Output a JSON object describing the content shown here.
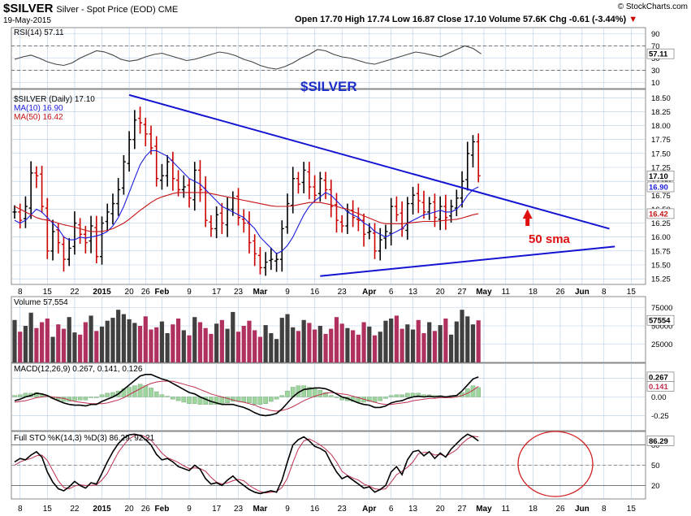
{
  "header": {
    "symbol": "$SILVER",
    "description": "Silver - Spot Price (EOD) CME",
    "date": "19-May-2015",
    "ohlc_line": "Open 17.70  High 17.74  Low 16.87  Close 17.10  Volume 57.6K  Chg -0.61 (-3.44%)",
    "change_marker": "▼",
    "watermark": "© StockCharts.com"
  },
  "chart_data": [
    {
      "type": "line",
      "panel": "rsi",
      "label": "RSI(14) 57.11",
      "yticks": [
        "90",
        "70",
        "50",
        "30",
        "10"
      ],
      "ylim": [
        0,
        100
      ],
      "last_label": "57.11",
      "values": [
        48,
        52,
        55,
        50,
        44,
        40,
        38,
        42,
        50,
        56,
        62,
        60,
        55,
        48,
        45,
        47,
        52,
        56,
        58,
        54,
        50,
        46,
        48,
        52,
        56,
        60,
        58,
        54,
        48,
        44,
        38,
        34,
        32,
        36,
        42,
        50,
        56,
        64,
        62,
        56,
        52,
        50,
        46,
        42,
        40,
        44,
        48,
        52,
        56,
        60,
        58,
        55,
        52,
        58,
        64,
        70,
        66,
        57
      ]
    },
    {
      "type": "ohlc",
      "panel": "price",
      "title": "$SILVER",
      "legend": [
        "$SILVER (Daily) 17.10",
        "MA(10) 16.90",
        "MA(50) 16.42"
      ],
      "yticks": [
        "18.50",
        "18.25",
        "18.00",
        "17.75",
        "17.50",
        "17.25",
        "17.00",
        "16.75",
        "16.50",
        "16.25",
        "16.00",
        "15.75",
        "15.50",
        "15.25"
      ],
      "ylim": [
        15.15,
        18.65
      ],
      "last_price": "17.10",
      "ma10_label": "16.90",
      "ma50_label": "16.42",
      "annotation": "50 sma",
      "closes": [
        16.45,
        16.3,
        16.55,
        17.15,
        17.1,
        16.55,
        15.75,
        16.1,
        15.9,
        15.6,
        15.8,
        16.25,
        16.05,
        15.9,
        16.2,
        15.65,
        16.25,
        16.45,
        16.6,
        16.85,
        17.35,
        17.75,
        18.1,
        18.05,
        17.85,
        17.6,
        17.05,
        17.1,
        17.35,
        17.05,
        16.85,
        16.9,
        16.7,
        17.2,
        16.85,
        16.3,
        16.15,
        16.4,
        16.25,
        16.5,
        16.7,
        16.35,
        16.25,
        15.9,
        15.7,
        15.45,
        15.55,
        15.6,
        15.6,
        16.15,
        16.6,
        17.05,
        16.95,
        17.2,
        16.9,
        16.75,
        17.05,
        16.85,
        16.55,
        16.3,
        16.2,
        16.45,
        16.35,
        16.3,
        16.05,
        16.1,
        15.75,
        15.95,
        16.1,
        16.55,
        16.4,
        16.15,
        16.6,
        16.75,
        16.65,
        16.45,
        16.6,
        16.35,
        16.55,
        16.35,
        16.55,
        16.7,
        17.0,
        17.5,
        17.71,
        17.1
      ],
      "ma10": [
        16.3,
        16.25,
        16.3,
        16.4,
        16.5,
        16.45,
        16.35,
        16.25,
        16.15,
        16.0,
        15.95,
        15.95,
        16.0,
        15.98,
        16.0,
        16.02,
        16.05,
        16.1,
        16.2,
        16.35,
        16.55,
        16.8,
        17.05,
        17.3,
        17.45,
        17.55,
        17.55,
        17.5,
        17.45,
        17.35,
        17.25,
        17.15,
        17.05,
        17.0,
        16.95,
        16.85,
        16.75,
        16.65,
        16.55,
        16.5,
        16.45,
        16.4,
        16.35,
        16.25,
        16.15,
        16.0,
        15.9,
        15.8,
        15.7,
        15.75,
        15.85,
        16.0,
        16.2,
        16.4,
        16.55,
        16.65,
        16.72,
        16.8,
        16.75,
        16.65,
        16.55,
        16.45,
        16.4,
        16.35,
        16.25,
        16.2,
        16.1,
        16.05,
        16.0,
        16.05,
        16.1,
        16.15,
        16.25,
        16.3,
        16.35,
        16.4,
        16.42,
        16.45,
        16.48,
        16.45,
        16.45,
        16.5,
        16.6,
        16.75,
        16.85,
        16.9
      ],
      "ma50": [
        16.55,
        16.5,
        16.45,
        16.4,
        16.35,
        16.32,
        16.3,
        16.28,
        16.25,
        16.22,
        16.2,
        16.18,
        16.15,
        16.12,
        16.1,
        16.1,
        16.1,
        16.12,
        16.15,
        16.2,
        16.25,
        16.32,
        16.4,
        16.48,
        16.55,
        16.62,
        16.68,
        16.72,
        16.75,
        16.78,
        16.8,
        16.8,
        16.8,
        16.8,
        16.8,
        16.8,
        16.78,
        16.76,
        16.74,
        16.72,
        16.7,
        16.68,
        16.66,
        16.64,
        16.62,
        16.6,
        16.58,
        16.56,
        16.55,
        16.55,
        16.55,
        16.56,
        16.58,
        16.6,
        16.62,
        16.62,
        16.62,
        16.6,
        16.58,
        16.55,
        16.52,
        16.5,
        16.46,
        16.42,
        16.38,
        16.34,
        16.3,
        16.26,
        16.24,
        16.24,
        16.24,
        16.24,
        16.25,
        16.26,
        16.27,
        16.28,
        16.28,
        16.28,
        16.29,
        16.3,
        16.31,
        16.32,
        16.34,
        16.37,
        16.4,
        16.42
      ]
    },
    {
      "type": "bar",
      "panel": "volume",
      "label": "Volume 57,554",
      "yticks": [
        "75000",
        "50000",
        "25000"
      ],
      "ylim": [
        0,
        90000
      ],
      "last_label": "57554",
      "values": [
        58000,
        42000,
        50000,
        68000,
        47000,
        55000,
        60000,
        35000,
        52000,
        46000,
        62000,
        41000,
        38000,
        55000,
        64000,
        43000,
        49000,
        57000,
        61000,
        72000,
        66000,
        59000,
        54000,
        50000,
        63000,
        45000,
        48000,
        56000,
        40000,
        52000,
        60000,
        44000,
        37000,
        62000,
        55000,
        47000,
        39000,
        53000,
        58000,
        46000,
        69000,
        42000,
        50000,
        57000,
        44000,
        35000,
        51000,
        40000,
        32000,
        61000,
        66000,
        48000,
        43000,
        58000,
        54000,
        45000,
        50000,
        39000,
        46000,
        62000,
        53000,
        47000,
        44000,
        38000,
        55000,
        49000,
        37000,
        42000,
        57000,
        60000,
        64000,
        46000,
        52000,
        45000,
        58000,
        40000,
        55000,
        43000,
        51000,
        60000,
        38000,
        56000,
        72000,
        63000,
        52000,
        57554
      ]
    },
    {
      "type": "line",
      "panel": "macd",
      "label": "MACD(12,26,9) 0.267, 0.141, 0.126",
      "yticks": [
        "0.25",
        "0.00",
        "-0.25"
      ],
      "ylim": [
        -0.45,
        0.45
      ],
      "labels": [
        "0.267",
        "0.141"
      ],
      "macd": [
        -0.05,
        -0.03,
        0.0,
        0.02,
        0.05,
        0.04,
        0.02,
        -0.02,
        -0.05,
        -0.08,
        -0.1,
        -0.11,
        -0.11,
        -0.12,
        -0.1,
        -0.1,
        -0.06,
        -0.03,
        0.0,
        0.04,
        0.1,
        0.16,
        0.22,
        0.28,
        0.3,
        0.3,
        0.27,
        0.24,
        0.22,
        0.18,
        0.14,
        0.1,
        0.06,
        0.04,
        0.0,
        -0.03,
        -0.06,
        -0.08,
        -0.1,
        -0.1,
        -0.1,
        -0.12,
        -0.14,
        -0.17,
        -0.21,
        -0.24,
        -0.25,
        -0.24,
        -0.22,
        -0.16,
        -0.08,
        0.0,
        0.06,
        0.1,
        0.11,
        0.12,
        0.12,
        0.11,
        0.08,
        0.04,
        0.0,
        -0.02,
        -0.05,
        -0.08,
        -0.1,
        -0.11,
        -0.14,
        -0.14,
        -0.12,
        -0.08,
        -0.06,
        -0.05,
        -0.02,
        0.0,
        0.01,
        0.0,
        0.01,
        0.0,
        0.01,
        0.0,
        0.01,
        0.02,
        0.08,
        0.16,
        0.24,
        0.267
      ],
      "signal": [
        -0.07,
        -0.06,
        -0.05,
        -0.03,
        -0.01,
        0.0,
        0.01,
        0.0,
        -0.01,
        -0.02,
        -0.04,
        -0.06,
        -0.07,
        -0.08,
        -0.09,
        -0.09,
        -0.09,
        -0.08,
        -0.06,
        -0.04,
        -0.01,
        0.03,
        0.07,
        0.11,
        0.15,
        0.18,
        0.2,
        0.21,
        0.21,
        0.21,
        0.19,
        0.17,
        0.15,
        0.13,
        0.1,
        0.07,
        0.04,
        0.02,
        0.0,
        -0.02,
        -0.04,
        -0.06,
        -0.07,
        -0.09,
        -0.11,
        -0.14,
        -0.16,
        -0.18,
        -0.19,
        -0.18,
        -0.16,
        -0.13,
        -0.09,
        -0.05,
        -0.02,
        0.01,
        0.03,
        0.05,
        0.06,
        0.05,
        0.04,
        0.03,
        0.01,
        -0.01,
        -0.03,
        -0.05,
        -0.07,
        -0.09,
        -0.1,
        -0.1,
        -0.09,
        -0.08,
        -0.07,
        -0.05,
        -0.04,
        -0.03,
        -0.02,
        -0.02,
        -0.01,
        -0.01,
        -0.01,
        0.0,
        0.02,
        0.05,
        0.09,
        0.141
      ]
    },
    {
      "type": "line",
      "panel": "sto",
      "label": "Full STO %K(14,3) %D(3) 86.29, 92.21",
      "yticks": [
        "80",
        "50",
        "20"
      ],
      "ylim": [
        0,
        100
      ],
      "labels": [
        "86.29"
      ],
      "k": [
        55,
        60,
        58,
        65,
        70,
        62,
        40,
        25,
        15,
        12,
        18,
        26,
        20,
        16,
        24,
        22,
        38,
        55,
        70,
        82,
        90,
        95,
        96,
        94,
        88,
        80,
        66,
        58,
        60,
        55,
        48,
        45,
        42,
        50,
        44,
        30,
        22,
        24,
        20,
        28,
        34,
        26,
        20,
        14,
        10,
        8,
        10,
        12,
        10,
        28,
        55,
        80,
        88,
        92,
        86,
        78,
        75,
        70,
        54,
        40,
        30,
        34,
        28,
        22,
        16,
        18,
        10,
        14,
        20,
        40,
        48,
        36,
        58,
        70,
        72,
        64,
        70,
        60,
        68,
        62,
        74,
        82,
        90,
        96,
        92,
        86
      ],
      "d": [
        50,
        55,
        58,
        60,
        64,
        65,
        57,
        42,
        27,
        17,
        15,
        19,
        21,
        20,
        20,
        21,
        28,
        38,
        54,
        69,
        80,
        89,
        94,
        95,
        92,
        87,
        78,
        68,
        61,
        58,
        54,
        49,
        45,
        46,
        45,
        41,
        32,
        25,
        22,
        24,
        27,
        29,
        27,
        20,
        15,
        11,
        9,
        10,
        11,
        17,
        31,
        54,
        74,
        86,
        89,
        85,
        80,
        74,
        66,
        55,
        41,
        35,
        31,
        28,
        22,
        19,
        15,
        14,
        15,
        25,
        36,
        41,
        47,
        55,
        67,
        69,
        69,
        65,
        66,
        63,
        68,
        73,
        82,
        89,
        93,
        92
      ]
    }
  ],
  "xaxis": {
    "labels": [
      {
        "i": 1,
        "t": "8"
      },
      {
        "i": 6,
        "t": "15"
      },
      {
        "i": 11,
        "t": "22"
      },
      {
        "i": 16,
        "t": "2015",
        "bold": true
      },
      {
        "i": 21,
        "t": "20"
      },
      {
        "i": 24,
        "t": "26"
      },
      {
        "i": 27,
        "t": "Feb",
        "bold": true
      },
      {
        "i": 32,
        "t": "9"
      },
      {
        "i": 37,
        "t": "17"
      },
      {
        "i": 41,
        "t": "23"
      },
      {
        "i": 45,
        "t": "Mar",
        "bold": true
      },
      {
        "i": 50,
        "t": "9"
      },
      {
        "i": 55,
        "t": "16"
      },
      {
        "i": 60,
        "t": "23"
      },
      {
        "i": 65,
        "t": "Apr",
        "bold": true
      },
      {
        "i": 69,
        "t": "6"
      },
      {
        "i": 73,
        "t": "13"
      },
      {
        "i": 78,
        "t": "20"
      },
      {
        "i": 82,
        "t": "27"
      },
      {
        "i": 86,
        "t": "May",
        "bold": true
      },
      {
        "i": 90,
        "t": "11"
      },
      {
        "i": 95,
        "t": "18"
      },
      {
        "i": 100,
        "t": "26"
      },
      {
        "i": 104,
        "t": "Jun",
        "bold": true
      },
      {
        "i": 108,
        "t": "8"
      },
      {
        "i": 113,
        "t": "15"
      }
    ]
  },
  "colors": {
    "up": "#000000",
    "down": "#cc0000",
    "ma10": "#1c1ce0",
    "ma50": "#c81414",
    "trendline": "#1414d2",
    "title": "#1c2fc8",
    "grid": "#b6cce4",
    "panel_border": "#888888",
    "circle": "#d22020",
    "vol_up": "#404040",
    "vol_down": "#b03060",
    "macd_hist": "#9ed49e"
  }
}
